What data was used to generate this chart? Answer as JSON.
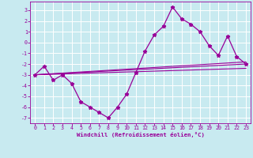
{
  "xlabel": "Windchill (Refroidissement éolien,°C)",
  "bg_color": "#c8eaf0",
  "grid_color": "#ffffff",
  "line_color": "#990099",
  "xlim": [
    -0.5,
    23.5
  ],
  "ylim": [
    -7.5,
    3.8
  ],
  "yticks": [
    3,
    2,
    1,
    0,
    -1,
    -2,
    -3,
    -4,
    -5,
    -6,
    -7
  ],
  "xticks": [
    0,
    1,
    2,
    3,
    4,
    5,
    6,
    7,
    8,
    9,
    10,
    11,
    12,
    13,
    14,
    15,
    16,
    17,
    18,
    19,
    20,
    21,
    22,
    23
  ],
  "main_x": [
    0,
    1,
    2,
    3,
    4,
    5,
    6,
    7,
    8,
    9,
    10,
    11,
    12,
    13,
    14,
    15,
    16,
    17,
    18,
    19,
    20,
    21,
    22,
    23
  ],
  "main_y": [
    -3.0,
    -2.2,
    -3.5,
    -3.0,
    -3.8,
    -5.5,
    -6.0,
    -6.5,
    -7.0,
    -6.0,
    -4.8,
    -2.8,
    -0.8,
    0.7,
    1.5,
    3.3,
    2.2,
    1.7,
    1.0,
    -0.3,
    -1.2,
    0.6,
    -1.3,
    -2.0
  ],
  "trend1_x": [
    0,
    23
  ],
  "trend1_y": [
    -3.0,
    -2.0
  ],
  "trend2_x": [
    0,
    23
  ],
  "trend2_y": [
    -3.0,
    -1.8
  ],
  "trend3_x": [
    0,
    23
  ],
  "trend3_y": [
    -3.0,
    -2.4
  ]
}
